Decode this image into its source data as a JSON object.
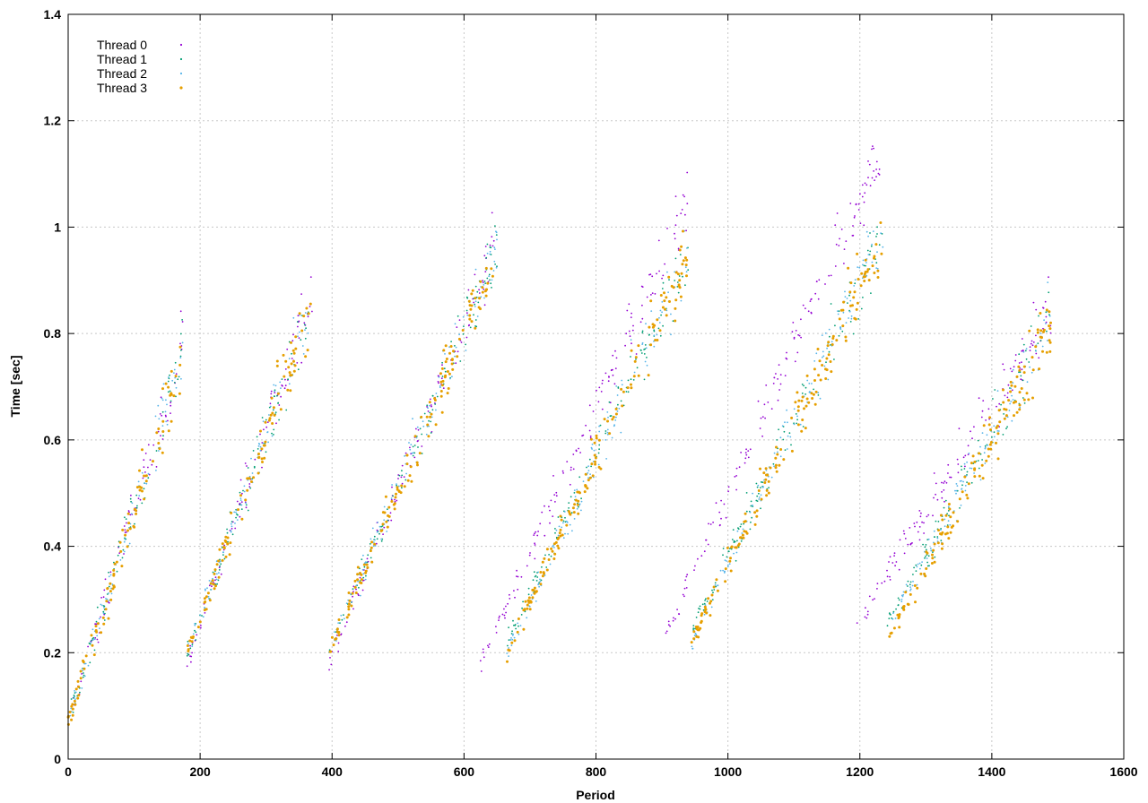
{
  "chart_data": {
    "type": "scatter",
    "title": "",
    "xlabel": "Period",
    "ylabel": "Time [sec]",
    "xlim": [
      0,
      1600
    ],
    "ylim": [
      0,
      1.4
    ],
    "xticks": [
      "0",
      "200",
      "400",
      "600",
      "800",
      "1000",
      "1200",
      "1400",
      "1600"
    ],
    "yticks": [
      "0",
      "0.2",
      "0.4",
      "0.6",
      "0.8",
      "1",
      "1.2",
      "1.4"
    ],
    "grid": true,
    "legend_position": "top-left",
    "series": [
      {
        "name": "Thread 0",
        "color": "#9400d3",
        "marker": "dot",
        "clusters": [
          [
            0,
            175,
            0.07,
            0.78
          ],
          [
            180,
            370,
            0.18,
            0.88
          ],
          [
            395,
            650,
            0.18,
            0.98
          ],
          [
            625,
            940,
            0.18,
            1.05
          ],
          [
            905,
            1235,
            0.23,
            1.15
          ],
          [
            1195,
            1490,
            0.25,
            0.85
          ]
        ]
      },
      {
        "name": "Thread 1",
        "color": "#009e73",
        "marker": "dot",
        "clusters": [
          [
            0,
            175,
            0.07,
            0.78
          ],
          [
            180,
            370,
            0.2,
            0.85
          ],
          [
            395,
            650,
            0.2,
            0.96
          ],
          [
            665,
            940,
            0.22,
            0.95
          ],
          [
            945,
            1235,
            0.24,
            0.98
          ],
          [
            1240,
            1490,
            0.25,
            0.83
          ]
        ]
      },
      {
        "name": "Thread 2",
        "color": "#56b4e9",
        "marker": "dot",
        "clusters": [
          [
            0,
            175,
            0.07,
            0.78
          ],
          [
            180,
            370,
            0.2,
            0.85
          ],
          [
            395,
            650,
            0.2,
            0.96
          ],
          [
            665,
            940,
            0.2,
            0.95
          ],
          [
            945,
            1235,
            0.22,
            1.0
          ],
          [
            1240,
            1490,
            0.24,
            0.83
          ]
        ]
      },
      {
        "name": "Thread 3",
        "color": "#e69f00",
        "marker": "dot",
        "clusters": [
          [
            0,
            175,
            0.07,
            0.76
          ],
          [
            180,
            370,
            0.2,
            0.85
          ],
          [
            395,
            650,
            0.2,
            0.95
          ],
          [
            665,
            940,
            0.2,
            0.95
          ],
          [
            945,
            1235,
            0.22,
            0.98
          ],
          [
            1240,
            1490,
            0.22,
            0.82
          ]
        ]
      }
    ]
  }
}
